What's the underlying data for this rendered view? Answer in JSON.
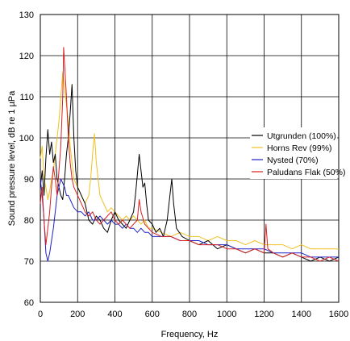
{
  "chart_data": {
    "type": "line",
    "xlabel": "Frequency, Hz",
    "ylabel": "Sound pressure level, dB re 1 µPa",
    "xlim": [
      0,
      1600
    ],
    "ylim": [
      60,
      130
    ],
    "x_ticks": [
      0,
      200,
      400,
      600,
      800,
      1000,
      1200,
      1400,
      1600
    ],
    "y_ticks": [
      60,
      70,
      80,
      90,
      100,
      110,
      120,
      130
    ],
    "grid": true,
    "legend_position": "right",
    "series": [
      {
        "name": "Utgrunden (100%)",
        "color": "#000000",
        "points": [
          [
            0,
            88
          ],
          [
            10,
            92
          ],
          [
            20,
            86
          ],
          [
            30,
            95
          ],
          [
            40,
            102
          ],
          [
            50,
            96
          ],
          [
            60,
            99
          ],
          [
            70,
            94
          ],
          [
            80,
            96
          ],
          [
            90,
            90
          ],
          [
            100,
            88
          ],
          [
            110,
            86
          ],
          [
            120,
            85
          ],
          [
            130,
            90
          ],
          [
            140,
            96
          ],
          [
            150,
            100
          ],
          [
            160,
            106
          ],
          [
            170,
            113
          ],
          [
            180,
            100
          ],
          [
            190,
            92
          ],
          [
            200,
            88
          ],
          [
            220,
            86
          ],
          [
            240,
            84
          ],
          [
            260,
            80
          ],
          [
            280,
            79
          ],
          [
            300,
            81
          ],
          [
            320,
            80
          ],
          [
            340,
            78
          ],
          [
            360,
            77
          ],
          [
            380,
            80
          ],
          [
            400,
            82
          ],
          [
            420,
            80
          ],
          [
            440,
            79
          ],
          [
            460,
            78
          ],
          [
            480,
            80
          ],
          [
            500,
            82
          ],
          [
            510,
            86
          ],
          [
            520,
            91
          ],
          [
            530,
            96
          ],
          [
            540,
            92
          ],
          [
            550,
            88
          ],
          [
            560,
            89
          ],
          [
            570,
            84
          ],
          [
            580,
            80
          ],
          [
            600,
            79
          ],
          [
            620,
            77
          ],
          [
            640,
            78
          ],
          [
            660,
            76
          ],
          [
            680,
            80
          ],
          [
            695,
            86
          ],
          [
            705,
            90
          ],
          [
            715,
            84
          ],
          [
            730,
            78
          ],
          [
            760,
            76
          ],
          [
            800,
            75
          ],
          [
            850,
            74
          ],
          [
            900,
            75
          ],
          [
            950,
            73
          ],
          [
            1000,
            74
          ],
          [
            1050,
            73
          ],
          [
            1100,
            72
          ],
          [
            1150,
            73
          ],
          [
            1200,
            72
          ],
          [
            1250,
            72
          ],
          [
            1300,
            71
          ],
          [
            1350,
            72
          ],
          [
            1400,
            71
          ],
          [
            1450,
            70
          ],
          [
            1500,
            71
          ],
          [
            1550,
            70
          ],
          [
            1600,
            71
          ]
        ]
      },
      {
        "name": "Horns Rev (99%)",
        "color": "#f0c020",
        "points": [
          [
            0,
            95
          ],
          [
            10,
            98
          ],
          [
            20,
            90
          ],
          [
            30,
            88
          ],
          [
            40,
            85
          ],
          [
            50,
            87
          ],
          [
            60,
            90
          ],
          [
            70,
            92
          ],
          [
            80,
            96
          ],
          [
            90,
            100
          ],
          [
            100,
            104
          ],
          [
            110,
            110
          ],
          [
            120,
            116
          ],
          [
            130,
            112
          ],
          [
            140,
            108
          ],
          [
            150,
            104
          ],
          [
            160,
            98
          ],
          [
            170,
            94
          ],
          [
            180,
            90
          ],
          [
            200,
            88
          ],
          [
            220,
            86
          ],
          [
            240,
            84
          ],
          [
            260,
            86
          ],
          [
            270,
            90
          ],
          [
            280,
            96
          ],
          [
            290,
            101
          ],
          [
            300,
            94
          ],
          [
            320,
            86
          ],
          [
            340,
            84
          ],
          [
            360,
            82
          ],
          [
            380,
            83
          ],
          [
            400,
            82
          ],
          [
            420,
            81
          ],
          [
            440,
            80
          ],
          [
            460,
            81
          ],
          [
            480,
            80
          ],
          [
            500,
            81
          ],
          [
            520,
            80
          ],
          [
            540,
            79
          ],
          [
            560,
            80
          ],
          [
            580,
            78
          ],
          [
            600,
            78
          ],
          [
            650,
            77
          ],
          [
            700,
            76
          ],
          [
            750,
            77
          ],
          [
            800,
            76
          ],
          [
            850,
            76
          ],
          [
            900,
            75
          ],
          [
            950,
            76
          ],
          [
            1000,
            75
          ],
          [
            1050,
            75
          ],
          [
            1100,
            74
          ],
          [
            1150,
            75
          ],
          [
            1200,
            74
          ],
          [
            1250,
            74
          ],
          [
            1300,
            74
          ],
          [
            1350,
            73
          ],
          [
            1400,
            74
          ],
          [
            1450,
            73
          ],
          [
            1500,
            73
          ],
          [
            1550,
            73
          ],
          [
            1600,
            73
          ]
        ]
      },
      {
        "name": "Nysted (70%)",
        "color": "#2020c8",
        "points": [
          [
            0,
            90
          ],
          [
            10,
            86
          ],
          [
            20,
            80
          ],
          [
            30,
            72
          ],
          [
            40,
            70
          ],
          [
            50,
            72
          ],
          [
            60,
            75
          ],
          [
            70,
            78
          ],
          [
            80,
            82
          ],
          [
            90,
            86
          ],
          [
            100,
            88
          ],
          [
            110,
            90
          ],
          [
            120,
            89
          ],
          [
            130,
            88
          ],
          [
            140,
            86
          ],
          [
            150,
            86
          ],
          [
            160,
            85
          ],
          [
            170,
            84
          ],
          [
            180,
            83
          ],
          [
            200,
            82
          ],
          [
            220,
            82
          ],
          [
            240,
            81
          ],
          [
            260,
            82
          ],
          [
            280,
            80
          ],
          [
            300,
            80
          ],
          [
            320,
            81
          ],
          [
            340,
            80
          ],
          [
            360,
            79
          ],
          [
            380,
            80
          ],
          [
            400,
            79
          ],
          [
            420,
            79
          ],
          [
            440,
            78
          ],
          [
            460,
            79
          ],
          [
            480,
            78
          ],
          [
            500,
            78
          ],
          [
            520,
            77
          ],
          [
            540,
            78
          ],
          [
            560,
            77
          ],
          [
            580,
            77
          ],
          [
            600,
            76
          ],
          [
            650,
            76
          ],
          [
            700,
            76
          ],
          [
            750,
            75
          ],
          [
            800,
            75
          ],
          [
            850,
            75
          ],
          [
            900,
            74
          ],
          [
            950,
            74
          ],
          [
            1000,
            74
          ],
          [
            1050,
            73
          ],
          [
            1100,
            73
          ],
          [
            1150,
            73
          ],
          [
            1200,
            73
          ],
          [
            1250,
            72
          ],
          [
            1300,
            72
          ],
          [
            1350,
            72
          ],
          [
            1400,
            72
          ],
          [
            1450,
            71
          ],
          [
            1500,
            71
          ],
          [
            1550,
            71
          ],
          [
            1600,
            71
          ]
        ]
      },
      {
        "name": "Paludans Flak (50%)",
        "color": "#d82020",
        "points": [
          [
            0,
            84
          ],
          [
            10,
            88
          ],
          [
            20,
            80
          ],
          [
            30,
            74
          ],
          [
            40,
            78
          ],
          [
            50,
            82
          ],
          [
            60,
            88
          ],
          [
            70,
            93
          ],
          [
            80,
            90
          ],
          [
            90,
            86
          ],
          [
            100,
            92
          ],
          [
            110,
            98
          ],
          [
            120,
            110
          ],
          [
            125,
            122
          ],
          [
            130,
            118
          ],
          [
            140,
            110
          ],
          [
            150,
            100
          ],
          [
            160,
            94
          ],
          [
            170,
            90
          ],
          [
            180,
            88
          ],
          [
            200,
            86
          ],
          [
            220,
            84
          ],
          [
            240,
            82
          ],
          [
            260,
            81
          ],
          [
            280,
            82
          ],
          [
            300,
            80
          ],
          [
            320,
            79
          ],
          [
            340,
            80
          ],
          [
            360,
            81
          ],
          [
            380,
            82
          ],
          [
            400,
            80
          ],
          [
            420,
            79
          ],
          [
            440,
            80
          ],
          [
            460,
            79
          ],
          [
            480,
            78
          ],
          [
            500,
            79
          ],
          [
            520,
            80
          ],
          [
            530,
            85
          ],
          [
            540,
            82
          ],
          [
            560,
            79
          ],
          [
            580,
            78
          ],
          [
            600,
            77
          ],
          [
            650,
            76
          ],
          [
            700,
            76
          ],
          [
            750,
            75
          ],
          [
            800,
            75
          ],
          [
            850,
            74
          ],
          [
            900,
            74
          ],
          [
            950,
            74
          ],
          [
            1000,
            73
          ],
          [
            1050,
            73
          ],
          [
            1100,
            72
          ],
          [
            1150,
            73
          ],
          [
            1200,
            72
          ],
          [
            1210,
            79
          ],
          [
            1220,
            73
          ],
          [
            1250,
            72
          ],
          [
            1300,
            71
          ],
          [
            1350,
            72
          ],
          [
            1400,
            71
          ],
          [
            1450,
            71
          ],
          [
            1500,
            70
          ],
          [
            1550,
            71
          ],
          [
            1600,
            70
          ]
        ]
      }
    ]
  }
}
